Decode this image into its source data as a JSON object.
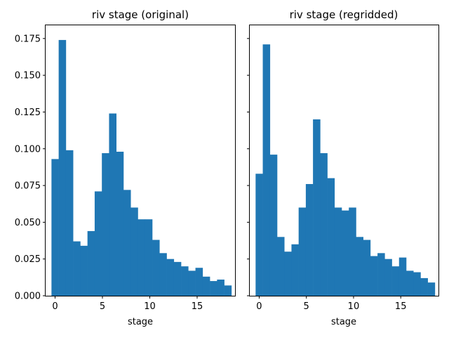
{
  "figure": {
    "background": "#ffffff",
    "bar_color": "#1f77b4",
    "y_axis_shared": true
  },
  "chart_data": [
    {
      "type": "bar",
      "title": "riv stage (original)",
      "xlabel": "stage",
      "ylabel": "",
      "xlim": [
        -1,
        19
      ],
      "ylim": [
        0,
        0.184
      ],
      "xticks": [
        0,
        5,
        10,
        15
      ],
      "yticks": [
        "0.000",
        "0.025",
        "0.050",
        "0.075",
        "0.100",
        "0.125",
        "0.150",
        "0.175"
      ],
      "show_ytick_labels": true,
      "grid": false,
      "bin_edges": [
        -0.38,
        0.38,
        1.14,
        1.9,
        2.66,
        3.42,
        4.18,
        4.94,
        5.7,
        6.46,
        7.22,
        7.98,
        8.74,
        9.5,
        10.26,
        11.02,
        11.78,
        12.54,
        13.3,
        14.06,
        14.82,
        15.58,
        16.34,
        17.1,
        17.86,
        18.62
      ],
      "values": [
        0.093,
        0.174,
        0.099,
        0.037,
        0.034,
        0.044,
        0.071,
        0.097,
        0.124,
        0.098,
        0.072,
        0.06,
        0.052,
        0.052,
        0.038,
        0.029,
        0.025,
        0.023,
        0.02,
        0.017,
        0.019,
        0.013,
        0.01,
        0.011,
        0.007
      ]
    },
    {
      "type": "bar",
      "title": "riv stage (regridded)",
      "xlabel": "stage",
      "ylabel": "",
      "xlim": [
        -1,
        19
      ],
      "ylim": [
        0,
        0.184
      ],
      "xticks": [
        0,
        5,
        10,
        15
      ],
      "yticks": [
        "0.000",
        "0.025",
        "0.050",
        "0.075",
        "0.100",
        "0.125",
        "0.150",
        "0.175"
      ],
      "show_ytick_labels": false,
      "grid": false,
      "bin_edges": [
        -0.38,
        0.38,
        1.14,
        1.9,
        2.66,
        3.42,
        4.18,
        4.94,
        5.7,
        6.46,
        7.22,
        7.98,
        8.74,
        9.5,
        10.26,
        11.02,
        11.78,
        12.54,
        13.3,
        14.06,
        14.82,
        15.58,
        16.34,
        17.1,
        17.86,
        18.62
      ],
      "values": [
        0.083,
        0.171,
        0.096,
        0.04,
        0.03,
        0.035,
        0.06,
        0.076,
        0.12,
        0.097,
        0.08,
        0.06,
        0.058,
        0.06,
        0.04,
        0.038,
        0.027,
        0.029,
        0.025,
        0.02,
        0.026,
        0.017,
        0.016,
        0.012,
        0.009
      ]
    }
  ]
}
